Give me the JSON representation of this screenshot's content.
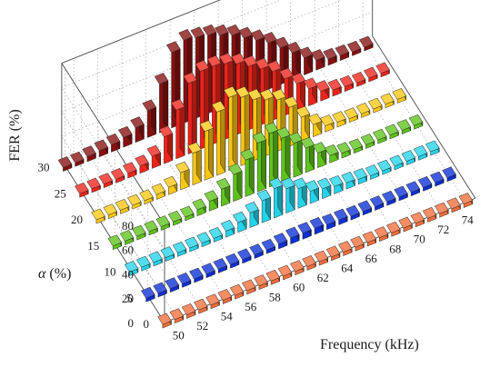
{
  "chart_data": {
    "type": "bar3d",
    "title": "",
    "xlabel": "Frequency (kHz)",
    "ylabel_symbol": "α",
    "ylabel_unit": " (%)",
    "zlabel": "FER (%)",
    "x_ticks": [
      "50",
      "52",
      "54",
      "56",
      "58",
      "60",
      "62",
      "64",
      "66",
      "68",
      "70",
      "72",
      "74"
    ],
    "y_ticks": [
      "0",
      "5",
      "10",
      "15",
      "20",
      "25",
      "30"
    ],
    "z_ticks": [
      "0",
      "20",
      "40",
      "60",
      "80"
    ],
    "x": [
      49,
      50,
      51,
      52,
      53,
      54,
      55,
      56,
      57,
      58,
      59,
      60,
      61,
      62,
      63,
      64,
      65,
      66,
      67,
      68,
      69,
      70,
      71,
      72,
      73,
      74
    ],
    "zlim": [
      0,
      80
    ],
    "grid": true,
    "series": [
      {
        "alpha": 0,
        "color": "#f26d3a",
        "values": [
          3,
          3,
          3,
          3,
          3,
          3,
          3,
          3,
          3,
          3,
          3,
          3,
          3,
          3,
          3,
          3,
          3,
          3,
          3,
          3,
          3,
          3,
          3,
          3,
          3,
          3
        ]
      },
      {
        "alpha": 5,
        "color": "#0b2fd6",
        "values": [
          3,
          3,
          3,
          3,
          3,
          3,
          3,
          3,
          3,
          3,
          3,
          4,
          5,
          5,
          5,
          4,
          4,
          3,
          3,
          3,
          3,
          3,
          3,
          3,
          3,
          3
        ]
      },
      {
        "alpha": 10,
        "color": "#22d3ea",
        "values": [
          3,
          3,
          3,
          3,
          3,
          3,
          3,
          3,
          5,
          8,
          12,
          18,
          24,
          20,
          16,
          10,
          8,
          6,
          5,
          4,
          3,
          3,
          3,
          3,
          3,
          3
        ]
      },
      {
        "alpha": 15,
        "color": "#5ec31a",
        "values": [
          3,
          3,
          3,
          3,
          3,
          3,
          3,
          5,
          8,
          14,
          22,
          30,
          40,
          44,
          36,
          28,
          20,
          12,
          6,
          4,
          3,
          3,
          3,
          3,
          3,
          3
        ]
      },
      {
        "alpha": 20,
        "color": "#fbc711",
        "values": [
          3,
          3,
          3,
          3,
          3,
          4,
          6,
          14,
          26,
          40,
          52,
          60,
          56,
          50,
          46,
          42,
          32,
          20,
          10,
          5,
          4,
          3,
          3,
          3,
          3,
          3
        ]
      },
      {
        "alpha": 25,
        "color": "#ef2318",
        "values": [
          3,
          3,
          3,
          3,
          4,
          6,
          10,
          22,
          40,
          58,
          64,
          64,
          62,
          58,
          52,
          46,
          40,
          30,
          22,
          14,
          8,
          5,
          4,
          3,
          3,
          3
        ]
      },
      {
        "alpha": 30,
        "color": "#870f0f",
        "values": [
          3,
          3,
          4,
          5,
          6,
          8,
          12,
          22,
          40,
          62,
          68,
          66,
          64,
          60,
          56,
          50,
          44,
          38,
          30,
          22,
          14,
          8,
          5,
          4,
          3,
          3
        ]
      }
    ]
  }
}
